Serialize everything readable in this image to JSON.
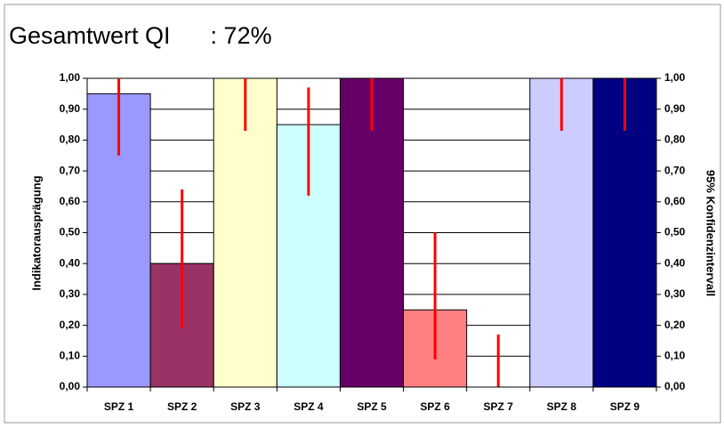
{
  "chart_data": {
    "type": "bar",
    "title": "Gesamtwert QI      : 72%",
    "y_label": "Indikatorausprägung",
    "y2_label": "95% Konfidenzintervall",
    "categories": [
      "SPZ 1",
      "SPZ 2",
      "SPZ 3",
      "SPZ 4",
      "SPZ 5",
      "SPZ 6",
      "SPZ 7",
      "SPZ 8",
      "SPZ 9"
    ],
    "series": [
      {
        "values": [
          0.95,
          0.4,
          1.0,
          0.85,
          1.0,
          0.25,
          0,
          1.0,
          1.0
        ],
        "ci_low": [
          0.75,
          0.19,
          0.83,
          0.62,
          0.83,
          0.09,
          0.0,
          0.83,
          0.83
        ],
        "ci_high": [
          1.0,
          0.64,
          1.0,
          0.97,
          1.0,
          0.5,
          0.17,
          1.0,
          1.0
        ],
        "colors": [
          "#9999ff",
          "#993366",
          "#ffffcc",
          "#ccffff",
          "#660066",
          "#ff8080",
          "#0066cc",
          "#ccccff",
          "#000080"
        ],
        "error_color": "#ff0000"
      }
    ],
    "ylim": [
      0,
      1
    ],
    "yticks": [
      {
        "value": 0,
        "label": "0,00"
      },
      {
        "value": 0.1,
        "label": "0,10"
      },
      {
        "value": 0.2,
        "label": "0,20"
      },
      {
        "value": 0.3,
        "label": "0,30"
      },
      {
        "value": 0.4,
        "label": "0,40"
      },
      {
        "value": 0.5,
        "label": "0,50"
      },
      {
        "value": 0.6,
        "label": "0,60"
      },
      {
        "value": 0.7,
        "label": "0,70"
      },
      {
        "value": 0.8,
        "label": "0,80"
      },
      {
        "value": 0.9,
        "label": "0,90"
      },
      {
        "value": 1,
        "label": "1,00"
      }
    ],
    "y2lim": [
      0,
      1
    ],
    "y2ticks": [
      {
        "value": 0,
        "label": "0,00"
      },
      {
        "value": 0.1,
        "label": "0,10"
      },
      {
        "value": 0.2,
        "label": "0,20"
      },
      {
        "value": 0.3,
        "label": "0,30"
      },
      {
        "value": 0.4,
        "label": "0,40"
      },
      {
        "value": 0.5,
        "label": "0,50"
      },
      {
        "value": 0.6,
        "label": "0,60"
      },
      {
        "value": 0.7,
        "label": "0,70"
      },
      {
        "value": 0.8,
        "label": "0,80"
      },
      {
        "value": 0.9,
        "label": "0,90"
      },
      {
        "value": 1,
        "label": "1,00"
      }
    ],
    "grid": true
  }
}
